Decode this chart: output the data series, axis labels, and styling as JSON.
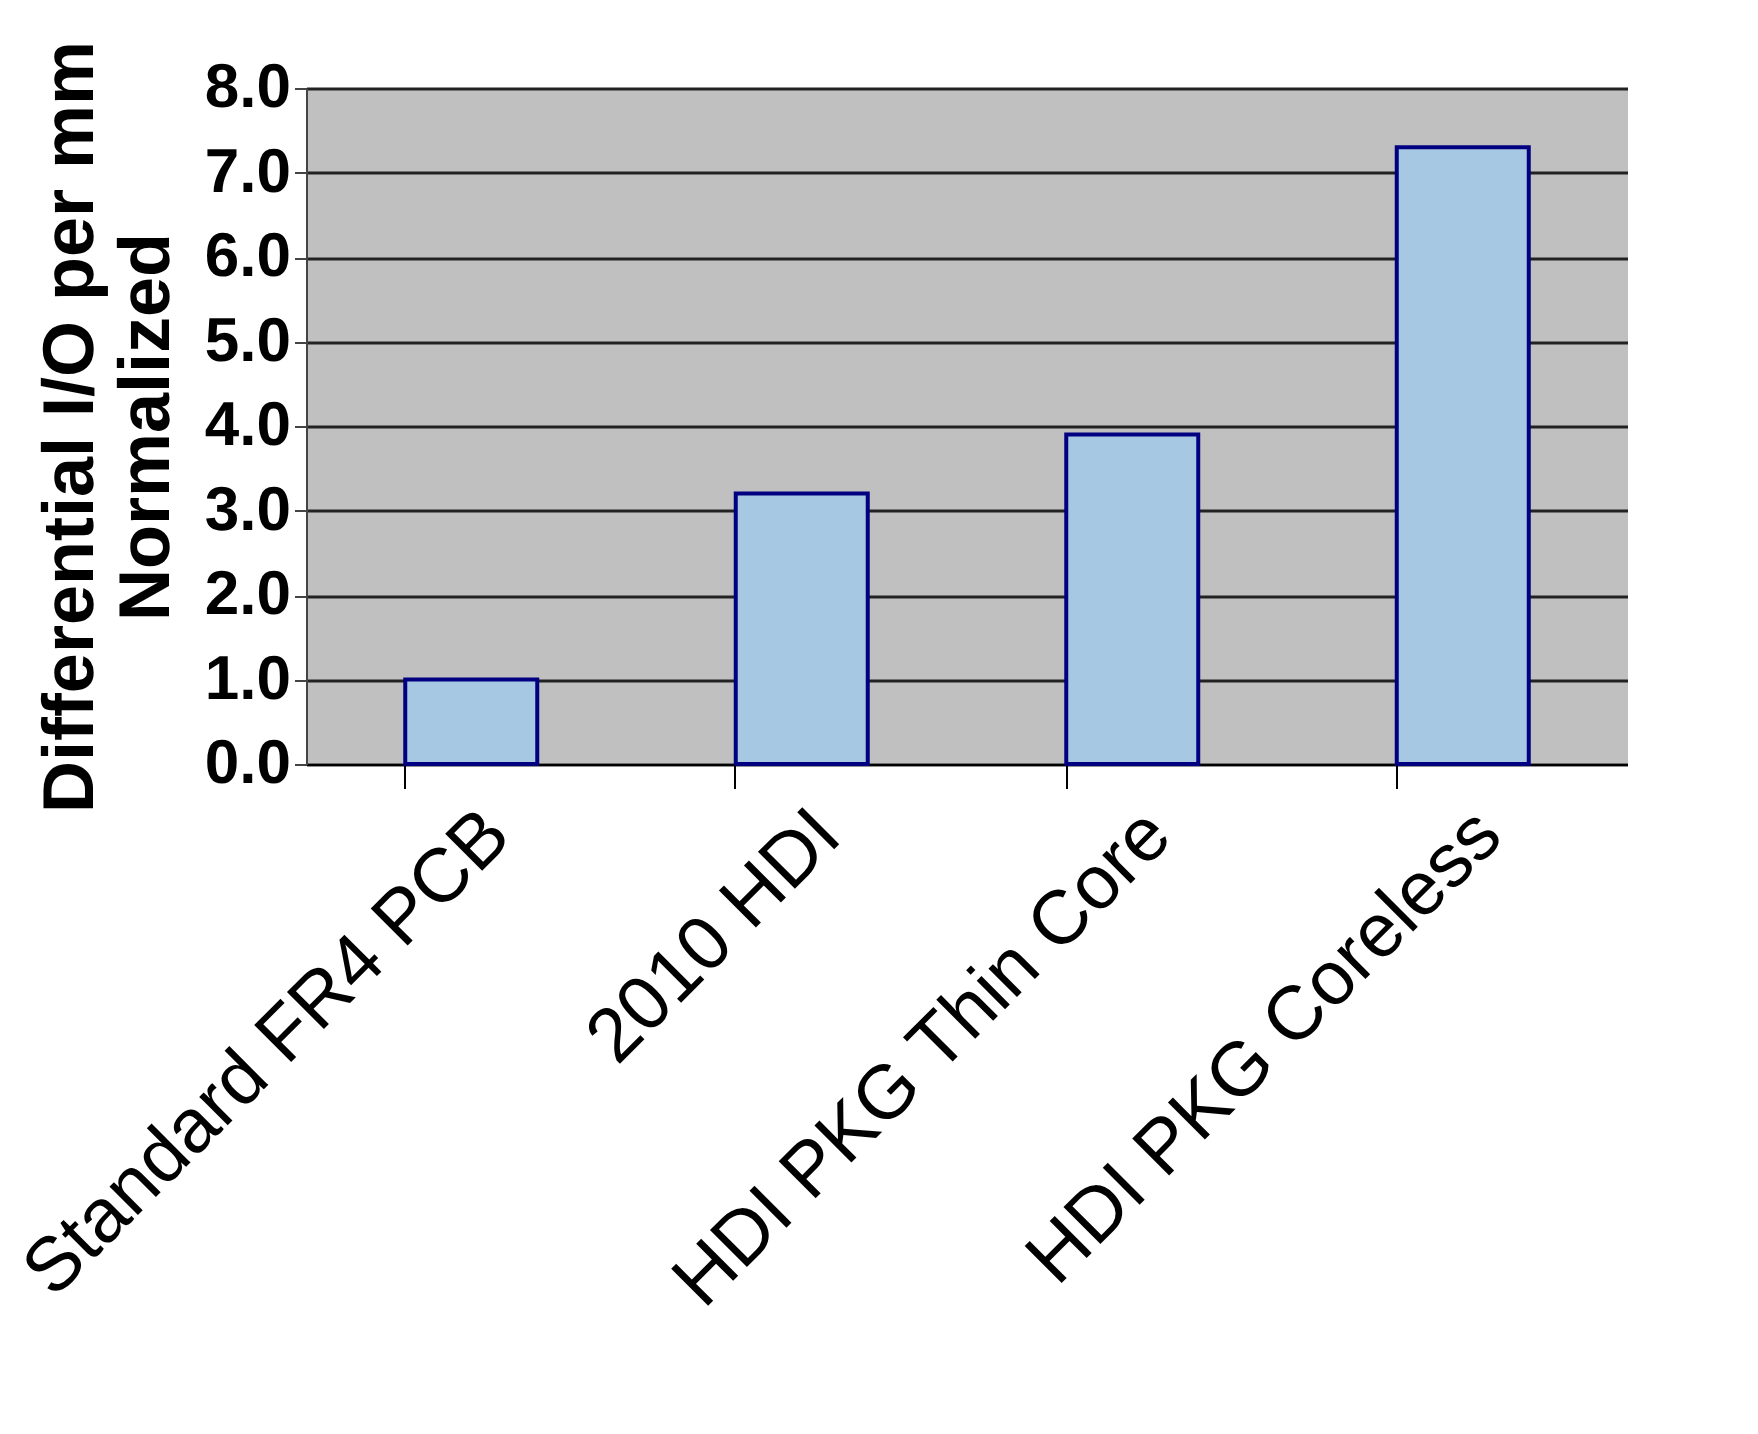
{
  "chart_data": {
    "type": "bar",
    "categories": [
      "Standard FR4 PCB",
      "2010 HDI",
      "HDI PKG Thin Core",
      "HDI PKG Coreless"
    ],
    "values": [
      1.0,
      3.2,
      3.9,
      7.3
    ],
    "color": "#a6c8e2",
    "ylabel": "Differential I/O per mm\nNormalized",
    "ylim": [
      0,
      8
    ],
    "yticks": [
      {
        "value": 0,
        "label": "0.0"
      },
      {
        "value": 1,
        "label": "1.0"
      },
      {
        "value": 2,
        "label": "2.0"
      },
      {
        "value": 3,
        "label": "3.0"
      },
      {
        "value": 4,
        "label": "4.0"
      },
      {
        "value": 5,
        "label": "5.0"
      },
      {
        "value": 6,
        "label": "6.0"
      },
      {
        "value": 7,
        "label": "7.0"
      },
      {
        "value": 8,
        "label": "8.0"
      }
    ],
    "grid": "y"
  }
}
